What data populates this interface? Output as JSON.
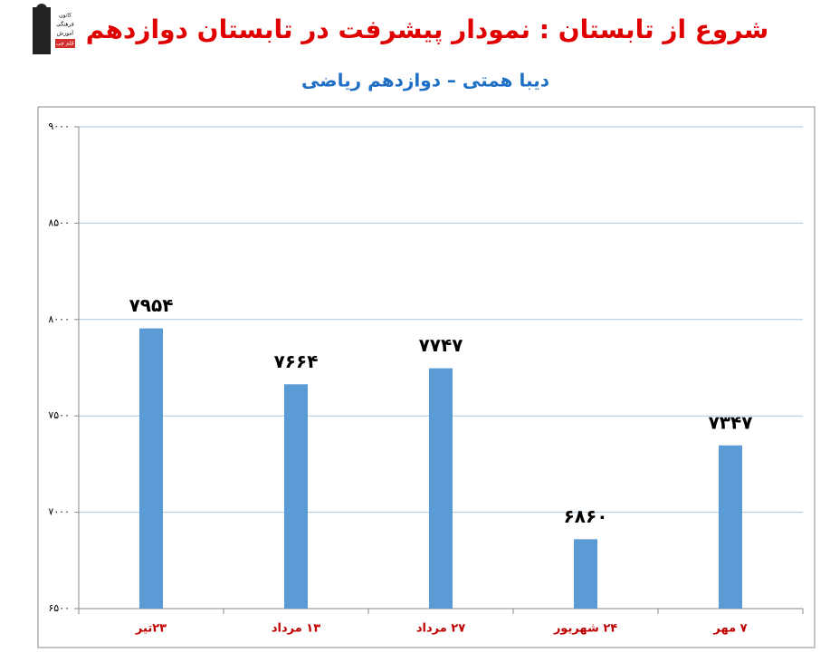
{
  "logo": {
    "lines": [
      "کانون",
      "فرهنگی",
      "آموزش",
      "قلم چی"
    ]
  },
  "chart_data": {
    "type": "bar",
    "title": "شروع از تابستان : نمودار پیشرفت در تابستان دوازدهم",
    "subtitle": "دیبا همتی – دوازدهم ریاضی",
    "categories": [
      "۲۳تیر",
      "۱۳ مرداد",
      "۲۷ مرداد",
      "۲۴ شهریور",
      "۷ مهر"
    ],
    "values": [
      7954,
      7664,
      7747,
      6860,
      7347
    ],
    "value_labels": [
      "۷۹۵۴",
      "۷۶۶۴",
      "۷۷۴۷",
      "۶۸۶۰",
      "۷۳۴۷"
    ],
    "color": "#5b9bd5",
    "ylim": [
      6500,
      9000
    ],
    "yticks": [
      {
        "value": 6500,
        "label": "۶۵۰۰"
      },
      {
        "value": 7000,
        "label": "۷۰۰۰"
      },
      {
        "value": 7500,
        "label": "۷۵۰۰"
      },
      {
        "value": 8000,
        "label": "۸۰۰۰"
      },
      {
        "value": 8500,
        "label": "۸۵۰۰"
      },
      {
        "value": 9000,
        "label": "۹۰۰۰"
      }
    ],
    "grid": true
  }
}
